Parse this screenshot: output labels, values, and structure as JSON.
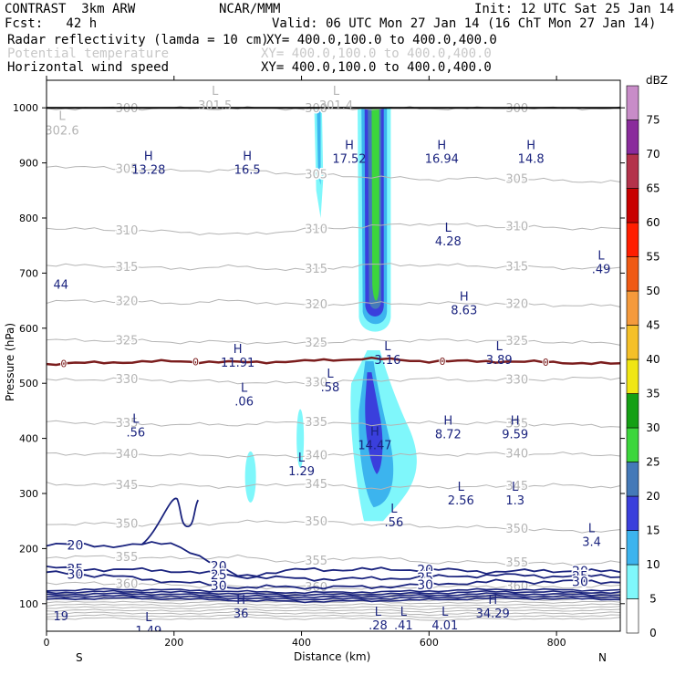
{
  "header": {
    "line1_left": "CONTRAST  3km ARW",
    "line1_mid": "NCAR/MMM",
    "line1_right": "Init: 12 UTC Sat 25 Jan 14",
    "line2_left": "Fcst:   42 h",
    "line2_right": "Valid: 06 UTC Mon 27 Jan 14 (16 ChT Mon 27 Jan 14)",
    "field1_name": "Radar reflectivity (lamda = 10 cm)",
    "field1_xy": "XY= 400.0,100.0 to 400.0,400.0",
    "field2_name": "Potential temperature",
    "field2_xy": "XY= 400.0,100.0 to 400.0,400.0",
    "field3_name": "Horizontal wind speed",
    "field3_xy": "XY= 400.0,100.0 to 400.0,400.0"
  },
  "colors": {
    "wind": "#1a237e",
    "theta": "#b4b4b4",
    "freezing": "#7b1d1d",
    "ground": "#000000"
  },
  "chart_data": {
    "type": "cross-section",
    "xlabel": "Distance (km)",
    "ylabel": "Pressure (hPa)",
    "xlim": [
      0,
      900
    ],
    "ylim": [
      1050,
      50
    ],
    "x_ticks": [
      0,
      200,
      400,
      600,
      800
    ],
    "y_ticks": [
      100,
      200,
      300,
      400,
      500,
      600,
      700,
      800,
      900,
      1000
    ],
    "left_end_label": "S",
    "right_end_label": "N",
    "colorbar": {
      "unit": "dBZ",
      "levels": [
        0,
        5,
        10,
        15,
        20,
        25,
        30,
        35,
        40,
        45,
        50,
        55,
        60,
        65,
        70,
        75
      ],
      "colors": [
        "#ffffff",
        "#7ff7fb",
        "#3cb4ee",
        "#3a3fdc",
        "#4479b8",
        "#3cd63c",
        "#14a014",
        "#f0e614",
        "#f5c028",
        "#f59a3c",
        "#f05a14",
        "#ff1e00",
        "#c80000",
        "#b4324b",
        "#8a2b9c",
        "#c88cc8"
      ]
    },
    "theta_contours": [
      {
        "value": 300,
        "p": [
          999,
          999,
          999,
          999,
          999,
          999,
          999,
          999,
          999,
          999
        ]
      },
      {
        "value": 305,
        "p": [
          895,
          890,
          885,
          888,
          880,
          875,
          870,
          872,
          868,
          865
        ]
      },
      {
        "value": 310,
        "p": [
          782,
          778,
          775,
          770,
          778,
          785,
          790,
          785,
          782,
          780
        ]
      },
      {
        "value": 315,
        "p": [
          715,
          712,
          708,
          712,
          705,
          715,
          715,
          712,
          710,
          708
        ]
      },
      {
        "value": 320,
        "p": [
          648,
          650,
          645,
          650,
          642,
          645,
          645,
          645,
          642,
          640
        ]
      },
      {
        "value": 325,
        "p": [
          578,
          578,
          575,
          575,
          572,
          578,
          578,
          578,
          575,
          572
        ]
      },
      {
        "value": 330,
        "p": [
          505,
          508,
          505,
          502,
          500,
          505,
          508,
          505,
          508,
          510
        ]
      },
      {
        "value": 335,
        "p": [
          430,
          428,
          425,
          425,
          430,
          425,
          428,
          428,
          425,
          422
        ]
      },
      {
        "value": 340,
        "p": [
          372,
          372,
          370,
          368,
          368,
          370,
          370,
          372,
          372,
          370
        ]
      },
      {
        "value": 345,
        "p": [
          318,
          315,
          315,
          312,
          318,
          310,
          312,
          312,
          315,
          312
        ]
      },
      {
        "value": 350,
        "p": [
          245,
          245,
          243,
          248,
          250,
          245,
          240,
          238,
          232,
          232
        ]
      },
      {
        "value": 355,
        "p": [
          185,
          185,
          182,
          185,
          175,
          185,
          175,
          175,
          172,
          175
        ]
      },
      {
        "value": 360,
        "p": [
          138,
          136,
          134,
          130,
          130,
          128,
          130,
          132,
          130,
          132
        ]
      }
    ],
    "wind_contours": [
      {
        "value": 20,
        "p": [
          208,
          205,
          210,
          150,
          162,
          162,
          162,
          158,
          160,
          158
        ]
      },
      {
        "value": 25,
        "p": [
          165,
          162,
          160,
          150,
          145,
          145,
          148,
          152,
          150,
          150
        ]
      },
      {
        "value": 30,
        "p": [
          157,
          150,
          140,
          130,
          130,
          130,
          135,
          140,
          140,
          140
        ]
      }
    ],
    "freezing_level_p": [
      535,
      538,
      540,
      538,
      540,
      545,
      540,
      540,
      538,
      535
    ],
    "freezing_level_value": "0",
    "reflectivity_core": {
      "x_center_km": 518,
      "top_hPa": 250,
      "max_dBZ": 30
    },
    "annotations": [
      {
        "type": "L",
        "x": 160,
        "p": 68,
        "value": "1.49"
      },
      {
        "type": "L",
        "x": 520,
        "p": 78,
        "value": ".28"
      },
      {
        "type": "L",
        "x": 560,
        "p": 78,
        "value": ".41"
      },
      {
        "type": "L",
        "x": 625,
        "p": 78,
        "value": "4.01"
      },
      {
        "type": "H",
        "x": 305,
        "p": 100,
        "value": "36"
      },
      {
        "type": "H",
        "x": 700,
        "p": 100,
        "value": "34.29"
      },
      {
        "type": "L",
        "x": 855,
        "p": 230,
        "value": "3.4"
      },
      {
        "type": "L",
        "x": 545,
        "p": 265,
        "value": ".56"
      },
      {
        "type": "L",
        "x": 650,
        "p": 305,
        "value": "2.56"
      },
      {
        "type": "L",
        "x": 735,
        "p": 305,
        "value": "1.3"
      },
      {
        "type": "L",
        "x": 400,
        "p": 358,
        "value": "1.29"
      },
      {
        "type": "H",
        "x": 515,
        "p": 405,
        "value": "14.47"
      },
      {
        "type": "H",
        "x": 630,
        "p": 425,
        "value": "8.72"
      },
      {
        "type": "H",
        "x": 735,
        "p": 425,
        "value": "9.59"
      },
      {
        "type": "L",
        "x": 140,
        "p": 428,
        "value": ".56"
      },
      {
        "type": "L",
        "x": 310,
        "p": 485,
        "value": ".06"
      },
      {
        "type": "L",
        "x": 445,
        "p": 510,
        "value": ".58"
      },
      {
        "type": "H",
        "x": 300,
        "p": 555,
        "value": "11.91"
      },
      {
        "type": "L",
        "x": 535,
        "p": 560,
        "value": "3.16"
      },
      {
        "type": "L",
        "x": 710,
        "p": 560,
        "value": "3.89"
      },
      {
        "type": "H",
        "x": 655,
        "p": 650,
        "value": "8.63"
      },
      {
        "type": "L",
        "x": 870,
        "p": 725,
        "value": ".49"
      },
      {
        "type": "L",
        "x": 630,
        "p": 775,
        "value": "4.28"
      },
      {
        "type": "H",
        "x": 160,
        "p": 905,
        "value": "13.28"
      },
      {
        "type": "H",
        "x": 315,
        "p": 905,
        "value": "16.5"
      },
      {
        "type": "H",
        "x": 475,
        "p": 925,
        "value": "17.52"
      },
      {
        "type": "H",
        "x": 620,
        "p": 925,
        "value": "16.94"
      },
      {
        "type": "H",
        "x": 760,
        "p": 925,
        "value": "14.8"
      }
    ],
    "theta_annotations": [
      {
        "type": "L",
        "x": 10,
        "p": 955,
        "value": "302.6"
      },
      {
        "type": "L",
        "x": 250,
        "p": 1000,
        "value": "301.5"
      },
      {
        "type": "L",
        "x": 440,
        "p": 1000,
        "value": "301.4"
      }
    ],
    "edge_labels": [
      {
        "x": 5,
        "p": 78,
        "value": "19"
      },
      {
        "x": 5,
        "p": 680,
        "value": "44"
      }
    ]
  }
}
